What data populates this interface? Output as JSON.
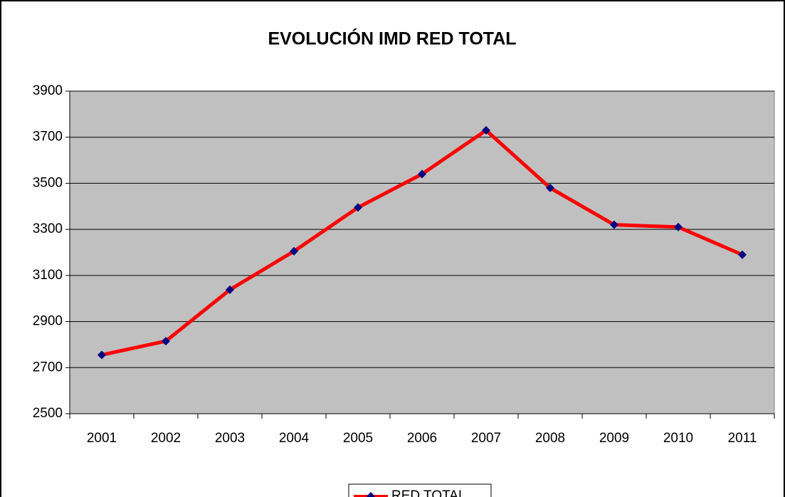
{
  "chart_data": {
    "type": "line",
    "title": "EVOLUCIÓN IMD RED TOTAL",
    "categories": [
      "2001",
      "2002",
      "2003",
      "2004",
      "2005",
      "2006",
      "2007",
      "2008",
      "2009",
      "2010",
      "2011"
    ],
    "series": [
      {
        "name": "RED TOTAL",
        "color": "#ff0000",
        "marker_color": "#000080",
        "values": [
          2755,
          2815,
          3038,
          3205,
          3395,
          3540,
          3730,
          3480,
          3320,
          3310,
          3190
        ]
      }
    ],
    "ylim": [
      2500,
      3900
    ],
    "yticks": [
      2500,
      2700,
      2900,
      3100,
      3300,
      3500,
      3700,
      3900
    ],
    "grid": true,
    "legend": "bottom"
  }
}
